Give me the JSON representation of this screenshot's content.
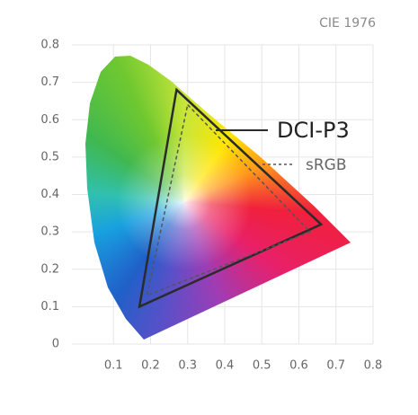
{
  "chart_data": {
    "type": "polygon",
    "title": "CIE 1976",
    "xlim": [
      0,
      0.8
    ],
    "ylim": [
      0,
      0.8
    ],
    "xticks": [
      0.1,
      0.2,
      0.3,
      0.4,
      0.5,
      0.6,
      0.7,
      0.8
    ],
    "yticks": [
      0,
      0.1,
      0.2,
      0.3,
      0.4,
      0.5,
      0.6,
      0.7,
      0.8
    ],
    "grid": true,
    "series": [
      {
        "name": "DCI-P3",
        "color": "#2b2b2b",
        "dashed": false,
        "x": [
          0.27,
          0.66,
          0.17
        ],
        "y": [
          0.68,
          0.32,
          0.1
        ]
      },
      {
        "name": "sRGB",
        "color": "#555555",
        "dashed": true,
        "x": [
          0.3,
          0.63,
          0.19
        ],
        "y": [
          0.64,
          0.3,
          0.13
        ]
      }
    ]
  }
}
